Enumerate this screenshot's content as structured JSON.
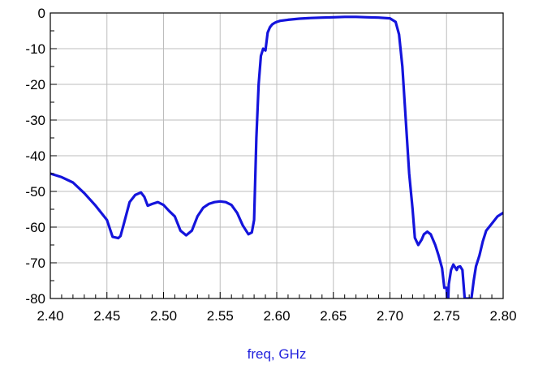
{
  "chart_data": {
    "type": "line",
    "title": "",
    "xlabel": "freq, GHz",
    "ylabel": "",
    "xlim": [
      2.4,
      2.8
    ],
    "ylim": [
      -80,
      0
    ],
    "xticks": [
      2.4,
      2.45,
      2.5,
      2.55,
      2.6,
      2.65,
      2.7,
      2.75,
      2.8
    ],
    "xtick_labels": [
      "2.40",
      "2.45",
      "2.50",
      "2.55",
      "2.60",
      "2.65",
      "2.70",
      "2.75",
      "2.80"
    ],
    "yticks": [
      0,
      -10,
      -20,
      -30,
      -40,
      -50,
      -60,
      -70,
      -80
    ],
    "ytick_labels": [
      "0",
      "-10",
      "-20",
      "-30",
      "-40",
      "-50",
      "-60",
      "-70",
      "-80"
    ],
    "grid": true,
    "legend": "none",
    "colors": {
      "line": "#1414dc",
      "xlabel": "#1f1fdc",
      "grid": "#bdbdbd"
    },
    "series": [
      {
        "x": [
          2.4,
          2.41,
          2.42,
          2.43,
          2.44,
          2.45,
          2.455,
          2.46,
          2.462,
          2.465,
          2.47,
          2.475,
          2.48,
          2.483,
          2.486,
          2.49,
          2.495,
          2.5,
          2.505,
          2.51,
          2.515,
          2.52,
          2.525,
          2.53,
          2.535,
          2.54,
          2.545,
          2.55,
          2.555,
          2.56,
          2.565,
          2.57,
          2.575,
          2.578,
          2.58,
          2.582,
          2.584,
          2.586,
          2.588,
          2.59,
          2.592,
          2.594,
          2.596,
          2.598,
          2.6,
          2.603,
          2.61,
          2.62,
          2.63,
          2.64,
          2.65,
          2.66,
          2.67,
          2.68,
          2.69,
          2.7,
          2.705,
          2.708,
          2.711,
          2.714,
          2.717,
          2.72,
          2.722,
          2.725,
          2.728,
          2.73,
          2.733,
          2.736,
          2.74,
          2.743,
          2.746,
          2.748,
          2.75,
          2.7505,
          2.7515,
          2.752,
          2.754,
          2.756,
          2.759,
          2.76,
          2.762,
          2.764,
          2.766,
          2.767,
          2.768,
          2.772,
          2.774,
          2.776,
          2.779,
          2.782,
          2.785,
          2.79,
          2.795,
          2.8
        ],
        "y": [
          -45,
          -46,
          -47.5,
          -50.5,
          -54,
          -58,
          -62.7,
          -63.1,
          -62.5,
          -59,
          -53,
          -51,
          -50.3,
          -51.5,
          -54,
          -53.5,
          -53,
          -53.8,
          -55.5,
          -57,
          -61,
          -62.3,
          -61,
          -57,
          -54.6,
          -53.5,
          -53,
          -52.8,
          -53,
          -53.8,
          -56,
          -59.5,
          -62,
          -61.5,
          -58,
          -35,
          -20,
          -12,
          -10,
          -10.5,
          -5.5,
          -4,
          -3.2,
          -2.8,
          -2.5,
          -2.2,
          -1.9,
          -1.6,
          -1.4,
          -1.3,
          -1.2,
          -1.1,
          -1.1,
          -1.2,
          -1.3,
          -1.5,
          -2.5,
          -6,
          -15,
          -30,
          -45,
          -55,
          -63,
          -65,
          -63.5,
          -62,
          -61.3,
          -62,
          -65,
          -68,
          -71.5,
          -77,
          -77,
          -80,
          -80,
          -76,
          -72,
          -70.5,
          -72,
          -71.2,
          -71,
          -72,
          -80,
          -80,
          -80,
          -80,
          -75,
          -71,
          -68,
          -64,
          -61,
          -59,
          -57,
          -56
        ]
      }
    ]
  }
}
